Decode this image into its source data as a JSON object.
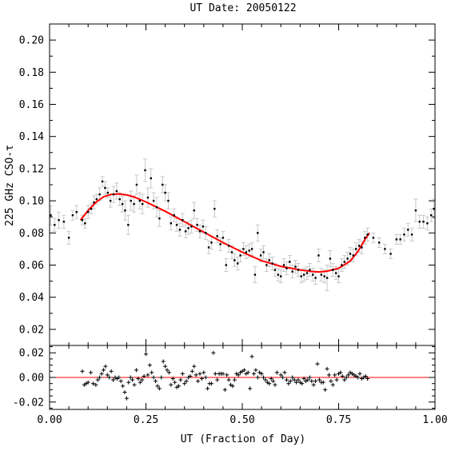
{
  "chart_data": [
    {
      "type": "scatter",
      "title": "UT Date: 20050122",
      "ylabel": "225 GHz CSO-τ",
      "xlim": [
        0,
        1
      ],
      "ylim": [
        0.01,
        0.21
      ],
      "yticks": [
        0.02,
        0.04,
        0.06,
        0.08,
        0.1,
        0.12,
        0.14,
        0.16,
        0.18,
        0.2
      ],
      "ytick_labels": [
        "0.02",
        "0.04",
        "0.06",
        "0.08",
        "0.10",
        "0.12",
        "0.14",
        "0.16",
        "0.18",
        "0.20"
      ],
      "grid": false,
      "colors": {
        "points": "#000000",
        "errorbars": "#c8c8c8",
        "fit": "#ff0000"
      },
      "fit_points": [
        [
          0.08,
          0.088
        ],
        [
          0.1,
          0.094
        ],
        [
          0.12,
          0.099
        ],
        [
          0.14,
          0.1025
        ],
        [
          0.16,
          0.104
        ],
        [
          0.18,
          0.1043
        ],
        [
          0.2,
          0.1037
        ],
        [
          0.22,
          0.1023
        ],
        [
          0.25,
          0.0993
        ],
        [
          0.3,
          0.0935
        ],
        [
          0.35,
          0.087
        ],
        [
          0.4,
          0.0805
        ],
        [
          0.45,
          0.074
        ],
        [
          0.5,
          0.068
        ],
        [
          0.55,
          0.0628
        ],
        [
          0.6,
          0.0592
        ],
        [
          0.65,
          0.057
        ],
        [
          0.68,
          0.056
        ],
        [
          0.7,
          0.0557
        ],
        [
          0.72,
          0.0562
        ],
        [
          0.75,
          0.058
        ],
        [
          0.78,
          0.0625
        ],
        [
          0.8,
          0.0685
        ],
        [
          0.82,
          0.0765
        ],
        [
          0.83,
          0.08
        ]
      ],
      "points": [
        [
          0.003,
          0.091,
          0.006
        ],
        [
          0.013,
          0.085,
          0.004
        ],
        [
          0.024,
          0.088,
          0.005
        ],
        [
          0.037,
          0.087,
          0.004
        ],
        [
          0.05,
          0.077,
          0.004
        ],
        [
          0.06,
          0.091,
          0.003
        ],
        [
          0.07,
          0.093,
          0.004
        ],
        [
          0.085,
          0.088,
          0.003
        ],
        [
          0.092,
          0.086,
          0.003
        ],
        [
          0.1,
          0.093,
          0.004
        ],
        [
          0.108,
          0.095,
          0.003
        ],
        [
          0.115,
          0.099,
          0.004
        ],
        [
          0.122,
          0.101,
          0.003
        ],
        [
          0.13,
          0.104,
          0.004
        ],
        [
          0.137,
          0.112,
          0.003
        ],
        [
          0.144,
          0.108,
          0.004
        ],
        [
          0.151,
          0.105,
          0.003
        ],
        [
          0.158,
          0.1,
          0.004
        ],
        [
          0.166,
          0.104,
          0.005
        ],
        [
          0.174,
          0.106,
          0.005
        ],
        [
          0.182,
          0.101,
          0.004
        ],
        [
          0.189,
          0.098,
          0.005
        ],
        [
          0.196,
          0.094,
          0.006
        ],
        [
          0.204,
          0.085,
          0.006
        ],
        [
          0.211,
          0.1,
          0.006
        ],
        [
          0.219,
          0.098,
          0.005
        ],
        [
          0.226,
          0.11,
          0.006
        ],
        [
          0.234,
          0.1,
          0.005
        ],
        [
          0.241,
          0.098,
          0.006
        ],
        [
          0.248,
          0.119,
          0.007
        ],
        [
          0.255,
          0.102,
          0.006
        ],
        [
          0.263,
          0.114,
          0.006
        ],
        [
          0.27,
          0.1,
          0.005
        ],
        [
          0.278,
          0.096,
          0.006
        ],
        [
          0.285,
          0.089,
          0.005
        ],
        [
          0.293,
          0.11,
          0.005
        ],
        [
          0.3,
          0.105,
          0.005
        ],
        [
          0.308,
          0.1,
          0.005
        ],
        [
          0.315,
          0.086,
          0.004
        ],
        [
          0.323,
          0.091,
          0.004
        ],
        [
          0.33,
          0.085,
          0.004
        ],
        [
          0.338,
          0.082,
          0.004
        ],
        [
          0.345,
          0.088,
          0.004
        ],
        [
          0.353,
          0.081,
          0.004
        ],
        [
          0.36,
          0.083,
          0.004
        ],
        [
          0.368,
          0.084,
          0.004
        ],
        [
          0.375,
          0.094,
          0.005
        ],
        [
          0.383,
          0.085,
          0.004
        ],
        [
          0.39,
          0.081,
          0.004
        ],
        [
          0.398,
          0.084,
          0.004
        ],
        [
          0.405,
          0.08,
          0.004
        ],
        [
          0.413,
          0.071,
          0.004
        ],
        [
          0.42,
          0.074,
          0.004
        ],
        [
          0.428,
          0.095,
          0.005
        ],
        [
          0.435,
          0.078,
          0.004
        ],
        [
          0.443,
          0.073,
          0.004
        ],
        [
          0.45,
          0.077,
          0.004
        ],
        [
          0.458,
          0.06,
          0.004
        ],
        [
          0.465,
          0.072,
          0.004
        ],
        [
          0.473,
          0.068,
          0.004
        ],
        [
          0.48,
          0.063,
          0.004
        ],
        [
          0.488,
          0.061,
          0.004
        ],
        [
          0.495,
          0.066,
          0.004
        ],
        [
          0.503,
          0.07,
          0.004
        ],
        [
          0.51,
          0.068,
          0.004
        ],
        [
          0.518,
          0.069,
          0.004
        ],
        [
          0.525,
          0.07,
          0.004
        ],
        [
          0.533,
          0.054,
          0.005
        ],
        [
          0.54,
          0.08,
          0.005
        ],
        [
          0.548,
          0.066,
          0.004
        ],
        [
          0.555,
          0.068,
          0.004
        ],
        [
          0.563,
          0.06,
          0.004
        ],
        [
          0.57,
          0.063,
          0.004
        ],
        [
          0.578,
          0.061,
          0.004
        ],
        [
          0.585,
          0.057,
          0.004
        ],
        [
          0.593,
          0.054,
          0.004
        ],
        [
          0.6,
          0.053,
          0.004
        ],
        [
          0.608,
          0.06,
          0.004
        ],
        [
          0.615,
          0.058,
          0.004
        ],
        [
          0.623,
          0.062,
          0.004
        ],
        [
          0.63,
          0.056,
          0.004
        ],
        [
          0.638,
          0.059,
          0.004
        ],
        [
          0.645,
          0.057,
          0.004
        ],
        [
          0.653,
          0.053,
          0.004
        ],
        [
          0.66,
          0.054,
          0.004
        ],
        [
          0.668,
          0.055,
          0.004
        ],
        [
          0.675,
          0.057,
          0.004
        ],
        [
          0.683,
          0.054,
          0.004
        ],
        [
          0.69,
          0.052,
          0.004
        ],
        [
          0.698,
          0.066,
          0.004
        ],
        [
          0.705,
          0.054,
          0.004
        ],
        [
          0.713,
          0.053,
          0.004
        ],
        [
          0.72,
          0.052,
          0.008
        ],
        [
          0.728,
          0.064,
          0.005
        ],
        [
          0.735,
          0.057,
          0.004
        ],
        [
          0.743,
          0.055,
          0.004
        ],
        [
          0.75,
          0.053,
          0.004
        ],
        [
          0.758,
          0.06,
          0.004
        ],
        [
          0.765,
          0.062,
          0.004
        ],
        [
          0.773,
          0.064,
          0.004
        ],
        [
          0.78,
          0.067,
          0.004
        ],
        [
          0.788,
          0.066,
          0.004
        ],
        [
          0.795,
          0.07,
          0.004
        ],
        [
          0.803,
          0.072,
          0.004
        ],
        [
          0.81,
          0.071,
          0.004
        ],
        [
          0.818,
          0.077,
          0.004
        ],
        [
          0.825,
          0.079,
          0.004
        ],
        [
          0.84,
          0.077,
          0.003
        ],
        [
          0.855,
          0.074,
          0.003
        ],
        [
          0.87,
          0.07,
          0.003
        ],
        [
          0.885,
          0.067,
          0.003
        ],
        [
          0.9,
          0.076,
          0.003
        ],
        [
          0.91,
          0.076,
          0.003
        ],
        [
          0.92,
          0.079,
          0.004
        ],
        [
          0.93,
          0.082,
          0.004
        ],
        [
          0.94,
          0.079,
          0.004
        ],
        [
          0.95,
          0.094,
          0.007
        ],
        [
          0.96,
          0.087,
          0.004
        ],
        [
          0.97,
          0.087,
          0.004
        ],
        [
          0.98,
          0.086,
          0.004
        ],
        [
          0.99,
          0.091,
          0.004
        ],
        [
          0.997,
          0.095,
          0.006
        ]
      ]
    },
    {
      "type": "scatter",
      "xlabel": "UT (Fraction of Day)",
      "xlim": [
        0,
        1
      ],
      "ylim": [
        -0.026,
        0.026
      ],
      "xticks": [
        0,
        0.25,
        0.5,
        0.75,
        1
      ],
      "xtick_labels": [
        "0.00",
        "0.25",
        "0.50",
        "0.75",
        "1.00"
      ],
      "yticks": [
        -0.02,
        0,
        0.02
      ],
      "ytick_labels": [
        "-0.02",
        "0.00",
        "0.02"
      ],
      "zero_line_color": "#ff0000",
      "residuals": [
        [
          0.085,
          0.005
        ],
        [
          0.09,
          -0.006
        ],
        [
          0.095,
          -0.005
        ],
        [
          0.1,
          -0.004
        ],
        [
          0.107,
          0.004
        ],
        [
          0.113,
          -0.005
        ],
        [
          0.12,
          -0.006
        ],
        [
          0.125,
          -0.002
        ],
        [
          0.13,
          0.0
        ],
        [
          0.135,
          0.003
        ],
        [
          0.14,
          0.006
        ],
        [
          0.145,
          0.009
        ],
        [
          0.15,
          0.002
        ],
        [
          0.155,
          0.0
        ],
        [
          0.16,
          0.005
        ],
        [
          0.165,
          -0.002
        ],
        [
          0.17,
          0.0
        ],
        [
          0.175,
          -0.001
        ],
        [
          0.18,
          0.0
        ],
        [
          0.185,
          -0.003
        ],
        [
          0.19,
          -0.007
        ],
        [
          0.195,
          -0.012
        ],
        [
          0.2,
          -0.017
        ],
        [
          0.205,
          -0.004
        ],
        [
          0.21,
          0.0
        ],
        [
          0.215,
          -0.002
        ],
        [
          0.22,
          -0.006
        ],
        [
          0.225,
          0.006
        ],
        [
          0.23,
          -0.001
        ],
        [
          0.235,
          -0.004
        ],
        [
          0.24,
          -0.002
        ],
        [
          0.245,
          0.001
        ],
        [
          0.25,
          0.019
        ],
        [
          0.255,
          0.002
        ],
        [
          0.26,
          0.01
        ],
        [
          0.265,
          0.004
        ],
        [
          0.27,
          0.0
        ],
        [
          0.275,
          -0.003
        ],
        [
          0.28,
          -0.007
        ],
        [
          0.285,
          -0.009
        ],
        [
          0.29,
          0.0
        ],
        [
          0.295,
          0.013
        ],
        [
          0.3,
          0.009
        ],
        [
          0.305,
          0.006
        ],
        [
          0.31,
          0.004
        ],
        [
          0.315,
          -0.006
        ],
        [
          0.32,
          -0.001
        ],
        [
          0.325,
          -0.004
        ],
        [
          0.33,
          -0.008
        ],
        [
          0.335,
          -0.007
        ],
        [
          0.34,
          -0.002
        ],
        [
          0.345,
          0.003
        ],
        [
          0.35,
          -0.005
        ],
        [
          0.355,
          -0.003
        ],
        [
          0.36,
          0.0
        ],
        [
          0.365,
          0.001
        ],
        [
          0.37,
          0.005
        ],
        [
          0.375,
          0.009
        ],
        [
          0.38,
          0.002
        ],
        [
          0.385,
          -0.003
        ],
        [
          0.39,
          0.003
        ],
        [
          0.395,
          -0.001
        ],
        [
          0.4,
          0.004
        ],
        [
          0.405,
          0.0
        ],
        [
          0.41,
          -0.009
        ],
        [
          0.415,
          -0.005
        ],
        [
          0.42,
          -0.005
        ],
        [
          0.425,
          0.02
        ],
        [
          0.43,
          0.003
        ],
        [
          0.435,
          -0.002
        ],
        [
          0.44,
          0.003
        ],
        [
          0.445,
          0.003
        ],
        [
          0.45,
          0.003
        ],
        [
          0.455,
          -0.01
        ],
        [
          0.46,
          0.002
        ],
        [
          0.465,
          -0.002
        ],
        [
          0.47,
          -0.006
        ],
        [
          0.475,
          -0.007
        ],
        [
          0.48,
          -0.002
        ],
        [
          0.485,
          0.003
        ],
        [
          0.49,
          0.002
        ],
        [
          0.495,
          0.004
        ],
        [
          0.5,
          0.005
        ],
        [
          0.505,
          0.006
        ],
        [
          0.51,
          0.003
        ],
        [
          0.515,
          0.004
        ],
        [
          0.52,
          -0.009
        ],
        [
          0.525,
          0.017
        ],
        [
          0.53,
          0.003
        ],
        [
          0.535,
          0.006
        ],
        [
          0.54,
          0.0
        ],
        [
          0.545,
          0.004
        ],
        [
          0.55,
          0.003
        ],
        [
          0.555,
          0.0
        ],
        [
          0.56,
          -0.002
        ],
        [
          0.565,
          -0.004
        ],
        [
          0.57,
          -0.005
        ],
        [
          0.575,
          -0.001
        ],
        [
          0.58,
          -0.003
        ],
        [
          0.585,
          -0.006
        ],
        [
          0.59,
          0.004
        ],
        [
          0.6,
          0.002
        ],
        [
          0.605,
          0.0
        ],
        [
          0.61,
          0.004
        ],
        [
          0.615,
          -0.002
        ],
        [
          0.62,
          -0.005
        ],
        [
          0.625,
          -0.003
        ],
        [
          0.63,
          0.0
        ],
        [
          0.635,
          -0.002
        ],
        [
          0.64,
          -0.004
        ],
        [
          0.645,
          -0.002
        ],
        [
          0.65,
          -0.004
        ],
        [
          0.655,
          -0.005
        ],
        [
          0.66,
          -0.001
        ],
        [
          0.665,
          -0.003
        ],
        [
          0.67,
          -0.002
        ],
        [
          0.675,
          0.0
        ],
        [
          0.68,
          -0.003
        ],
        [
          0.685,
          -0.006
        ],
        [
          0.69,
          -0.003
        ],
        [
          0.695,
          0.011
        ],
        [
          0.7,
          -0.002
        ],
        [
          0.705,
          -0.004
        ],
        [
          0.71,
          -0.004
        ],
        [
          0.715,
          -0.01
        ],
        [
          0.72,
          0.007
        ],
        [
          0.725,
          0.002
        ],
        [
          0.73,
          -0.003
        ],
        [
          0.735,
          -0.006
        ],
        [
          0.74,
          0.002
        ],
        [
          0.745,
          -0.002
        ],
        [
          0.75,
          0.003
        ],
        [
          0.755,
          0.004
        ],
        [
          0.76,
          0.001
        ],
        [
          0.765,
          -0.002
        ],
        [
          0.77,
          0.0
        ],
        [
          0.775,
          0.002
        ],
        [
          0.78,
          0.004
        ],
        [
          0.785,
          0.003
        ],
        [
          0.79,
          0.002
        ],
        [
          0.795,
          0.001
        ],
        [
          0.8,
          0.0
        ],
        [
          0.805,
          0.003
        ],
        [
          0.81,
          -0.001
        ],
        [
          0.815,
          0.0
        ],
        [
          0.82,
          0.001
        ],
        [
          0.825,
          -0.001
        ]
      ]
    }
  ]
}
